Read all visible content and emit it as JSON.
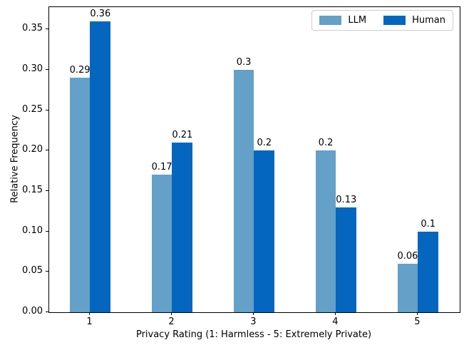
{
  "chart_data": {
    "type": "bar",
    "title": "",
    "xlabel": "Privacy Rating (1: Harmless - 5: Extremely Private)",
    "ylabel": "Relative Frequency",
    "categories": [
      "1",
      "2",
      "3",
      "4",
      "5"
    ],
    "series": [
      {
        "name": "LLM",
        "color": "#64a0c8",
        "values": [
          0.29,
          0.17,
          0.3,
          0.2,
          0.06
        ],
        "labels": [
          "0.29",
          "0.17",
          "0.3",
          "0.2",
          "0.06"
        ]
      },
      {
        "name": "Human",
        "color": "#0566bf",
        "values": [
          0.36,
          0.21,
          0.2,
          0.13,
          0.1
        ],
        "labels": [
          "0.36",
          "0.21",
          "0.2",
          "0.13",
          "0.1"
        ]
      }
    ],
    "yticks": [
      "0.00",
      "0.05",
      "0.10",
      "0.15",
      "0.20",
      "0.25",
      "0.30",
      "0.35"
    ],
    "ytick_values": [
      0,
      0.05,
      0.1,
      0.15,
      0.2,
      0.25,
      0.3,
      0.35
    ],
    "ylim": [
      0,
      0.3775
    ],
    "xlim": [
      -0.5,
      4.51
    ],
    "bar_width_units": 0.25,
    "grid": false,
    "legend": {
      "position": "upper right"
    }
  }
}
